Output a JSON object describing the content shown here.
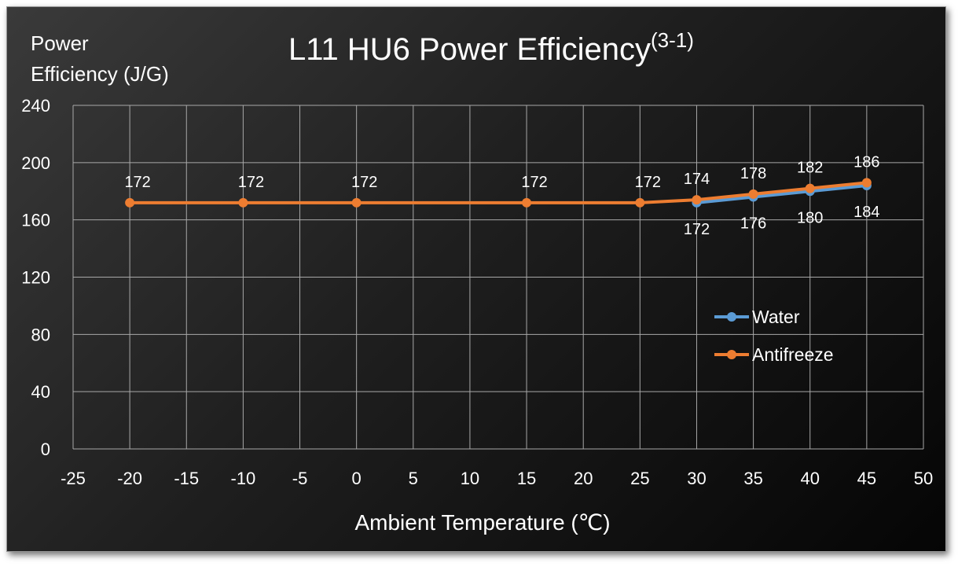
{
  "chart_data": {
    "type": "line",
    "title": "L11 HU6 Power Efficiency",
    "title_superscript": "(3-1)",
    "xlabel": "Ambient Temperature (℃)",
    "ylabel_line1": "Power",
    "ylabel_line2": "Efficiency (J/G)",
    "xlim": [
      -25,
      50
    ],
    "ylim": [
      0,
      240
    ],
    "xticks": [
      "-25",
      "-20",
      "-15",
      "-10",
      "-5",
      "0",
      "5",
      "10",
      "15",
      "20",
      "25",
      "30",
      "35",
      "40",
      "45",
      "50"
    ],
    "yticks": [
      "240",
      "200",
      "160",
      "120",
      "80",
      "40",
      "0"
    ],
    "grid": true,
    "legend_position": "right",
    "series": [
      {
        "name": "Water",
        "color": "#5b9bd5",
        "x": [
          30,
          35,
          40,
          45
        ],
        "y": [
          172,
          176,
          180,
          184
        ],
        "labels": [
          "172",
          "176",
          "180",
          "184"
        ]
      },
      {
        "name": "Antifreeze",
        "color": "#ed7d31",
        "x": [
          -20,
          -10,
          0,
          15,
          25,
          30,
          35,
          40,
          45
        ],
        "y": [
          172,
          172,
          172,
          172,
          172,
          174,
          178,
          182,
          186
        ],
        "labels": [
          "172",
          "172",
          "172",
          "172",
          "172",
          "174",
          "178",
          "182",
          "186"
        ]
      }
    ]
  }
}
